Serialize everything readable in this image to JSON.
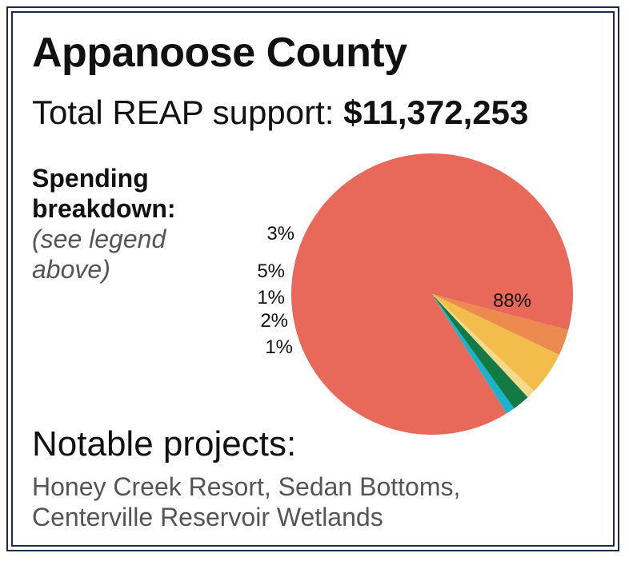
{
  "header": {
    "title": "Appanoose County",
    "support_label": "Total REAP support:",
    "support_amount": "$11,372,253"
  },
  "breakdown": {
    "heading_line1": "Spending",
    "heading_line2": "breakdown:",
    "note_line1": "(see legend",
    "note_line2": "above)"
  },
  "chart_data": {
    "type": "pie",
    "slices": [
      {
        "label": "88%",
        "value": 88,
        "color": "#e8695a"
      },
      {
        "label": "3%",
        "value": 3,
        "color": "#ec8a50"
      },
      {
        "label": "5%",
        "value": 5,
        "color": "#f2bd4b"
      },
      {
        "label": "1%",
        "value": 1,
        "color": "#f6d98d"
      },
      {
        "label": "2%",
        "value": 2,
        "color": "#137a43"
      },
      {
        "label": "1%",
        "value": 1,
        "color": "#1ab3cf"
      }
    ]
  },
  "projects": {
    "heading": "Notable projects:",
    "line1": "Honey Creek Resort, Sedan Bottoms,",
    "line2": "Centerville Reservoir Wetlands"
  }
}
